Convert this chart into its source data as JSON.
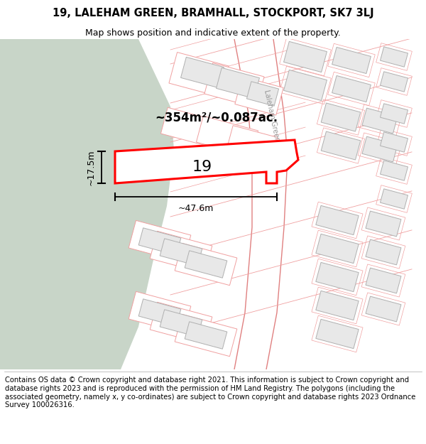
{
  "title_line1": "19, LALEHAM GREEN, BRAMHALL, STOCKPORT, SK7 3LJ",
  "title_line2": "Map shows position and indicative extent of the property.",
  "area_text": "~354m²/~0.087ac.",
  "number_label": "19",
  "width_label": "~47.6m",
  "height_label": "~17.5m",
  "street_label": "Laleham Green",
  "footer_text": "Contains OS data © Crown copyright and database right 2021. This information is subject to Crown copyright and database rights 2023 and is reproduced with the permission of HM Land Registry. The polygons (including the associated geometry, namely x, y co-ordinates) are subject to Crown copyright and database rights 2023 Ordnance Survey 100026316.",
  "bg_color": "#ffffff",
  "map_bg": "#ffffff",
  "green_color": "#c8d5c8",
  "road_line_color": "#f0a0a0",
  "road_outline_color": "#e08080",
  "building_fill": "#e8e8e8",
  "building_edge": "#b0b0b0",
  "plot_fill": "#ffffff",
  "plot_edge": "#ff0000",
  "dim_color": "#000000",
  "street_text_color": "#999999",
  "title_fontsize": 10.5,
  "subtitle_fontsize": 9,
  "footer_fontsize": 7.2,
  "label_fontsize": 9,
  "area_fontsize": 12,
  "num_fontsize": 16
}
